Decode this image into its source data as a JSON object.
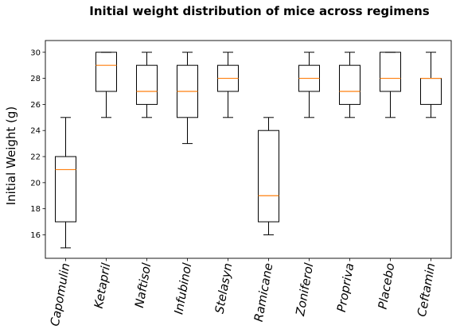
{
  "chart_data": {
    "type": "box",
    "title": "Initial weight distribution of mice across regimens",
    "xlabel": "",
    "ylabel": "Initial Weight (g)",
    "ylim": [
      14.2,
      30.9
    ],
    "yticks": [
      16,
      18,
      20,
      22,
      24,
      26,
      28,
      30
    ],
    "grid": false,
    "colors": {
      "box": "#000000",
      "median": "#ff7f0e",
      "axes": "#000000"
    },
    "categories": [
      "Capomulin",
      "Ketapril",
      "Naftisol",
      "Infubinol",
      "Stelasyn",
      "Ramicane",
      "Zoniferol",
      "Propriva",
      "Placebo",
      "Ceftamin"
    ],
    "boxes": [
      {
        "category": "Capomulin",
        "whisker_low": 15,
        "q1": 17,
        "median": 21,
        "q3": 22,
        "whisker_high": 25
      },
      {
        "category": "Ketapril",
        "whisker_low": 25,
        "q1": 27,
        "median": 29,
        "q3": 30,
        "whisker_high": 30
      },
      {
        "category": "Naftisol",
        "whisker_low": 25,
        "q1": 26,
        "median": 27,
        "q3": 29,
        "whisker_high": 30
      },
      {
        "category": "Infubinol",
        "whisker_low": 23,
        "q1": 25,
        "median": 27,
        "q3": 29,
        "whisker_high": 30
      },
      {
        "category": "Stelasyn",
        "whisker_low": 25,
        "q1": 27,
        "median": 28,
        "q3": 29,
        "whisker_high": 30
      },
      {
        "category": "Ramicane",
        "whisker_low": 16,
        "q1": 17,
        "median": 19,
        "q3": 24,
        "whisker_high": 25
      },
      {
        "category": "Zoniferol",
        "whisker_low": 25,
        "q1": 27,
        "median": 28,
        "q3": 29,
        "whisker_high": 30
      },
      {
        "category": "Propriva",
        "whisker_low": 25,
        "q1": 26,
        "median": 27,
        "q3": 29,
        "whisker_high": 30
      },
      {
        "category": "Placebo",
        "whisker_low": 25,
        "q1": 27,
        "median": 28,
        "q3": 30,
        "whisker_high": 30
      },
      {
        "category": "Ceftamin",
        "whisker_low": 25,
        "q1": 26,
        "median": 28,
        "q3": 28,
        "whisker_high": 30
      }
    ]
  }
}
